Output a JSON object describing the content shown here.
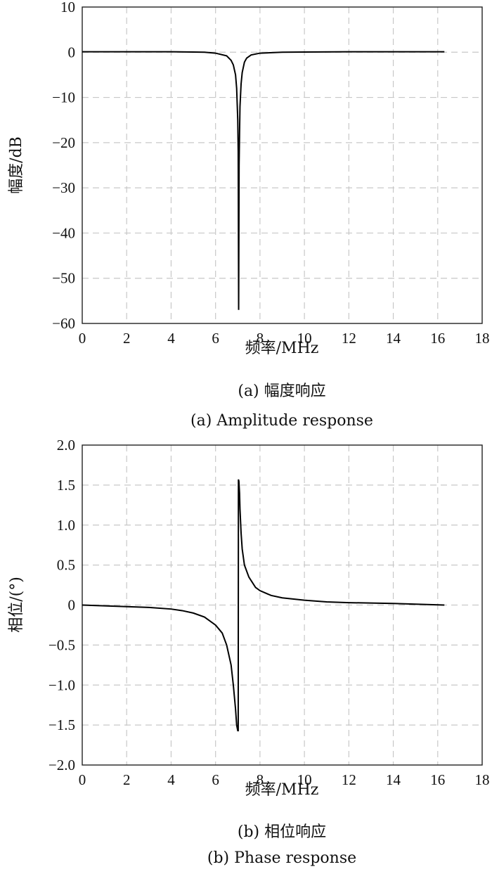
{
  "chart_data": [
    {
      "type": "line",
      "xlabel": "频率/MHz",
      "ylabel": "幅度/dB",
      "xlim": [
        0,
        18
      ],
      "ylim": [
        -60,
        10
      ],
      "xticks": [
        0,
        2,
        4,
        6,
        8,
        10,
        12,
        14,
        16,
        18
      ],
      "yticks": [
        10,
        0,
        -10,
        -20,
        -30,
        -40,
        -50,
        -60
      ],
      "ytick_labels": [
        "10",
        "0",
        "−10",
        "−20",
        "−30",
        "−40",
        "−50",
        "−60"
      ],
      "grid": true,
      "caption_cn": "(a) 幅度响应",
      "caption_en": "(a) Amplitude response",
      "series": [
        {
          "x": [
            0,
            1,
            2,
            3,
            4,
            5,
            5.5,
            6,
            6.5,
            6.7,
            6.8,
            6.9,
            6.95,
            7.0,
            7.02,
            7.04,
            7.06,
            7.08,
            7.1,
            7.15,
            7.2,
            7.3,
            7.4,
            7.6,
            8,
            9,
            10,
            12,
            14,
            16.3
          ],
          "y": [
            0.1,
            0.1,
            0.1,
            0.1,
            0.1,
            0.05,
            0,
            -0.2,
            -0.8,
            -1.8,
            -2.8,
            -5,
            -8,
            -15,
            -22,
            -57,
            -25,
            -18,
            -12,
            -7,
            -4.5,
            -2.2,
            -1.3,
            -0.6,
            -0.2,
            0,
            0.05,
            0.1,
            0.1,
            0.1
          ]
        }
      ]
    },
    {
      "type": "line",
      "xlabel": "频率/MHz",
      "ylabel": "相位/(°)",
      "xlim": [
        0,
        18
      ],
      "ylim": [
        -2.0,
        2.0
      ],
      "xticks": [
        0,
        2,
        4,
        6,
        8,
        10,
        12,
        14,
        16,
        18
      ],
      "yticks": [
        2.0,
        1.5,
        1.0,
        0.5,
        0,
        -0.5,
        -1.0,
        -1.5,
        -2.0
      ],
      "ytick_labels": [
        "2.0",
        "1.5",
        "1.0",
        "0.5",
        "0",
        "−0.5",
        "−1.0",
        "−1.5",
        "−2.0"
      ],
      "grid": true,
      "caption_cn": "(b) 相位响应",
      "caption_en": "(b) Phase response",
      "series": [
        {
          "x": [
            0,
            1,
            2,
            3,
            4,
            4.5,
            5,
            5.5,
            6,
            6.3,
            6.5,
            6.7,
            6.8,
            6.9,
            6.95,
            7.0,
            7.02,
            7.03,
            7.05,
            7.08,
            7.1,
            7.15,
            7.2,
            7.3,
            7.5,
            7.8,
            8,
            8.5,
            9,
            10,
            11,
            12,
            14,
            16.3
          ],
          "y": [
            0,
            -0.01,
            -0.02,
            -0.03,
            -0.05,
            -0.07,
            -0.1,
            -0.15,
            -0.25,
            -0.35,
            -0.5,
            -0.75,
            -1.0,
            -1.3,
            -1.5,
            -1.57,
            -1.57,
            1.57,
            1.55,
            1.4,
            1.2,
            0.9,
            0.7,
            0.5,
            0.35,
            0.22,
            0.18,
            0.12,
            0.09,
            0.06,
            0.04,
            0.03,
            0.02,
            0.0
          ]
        }
      ]
    }
  ]
}
